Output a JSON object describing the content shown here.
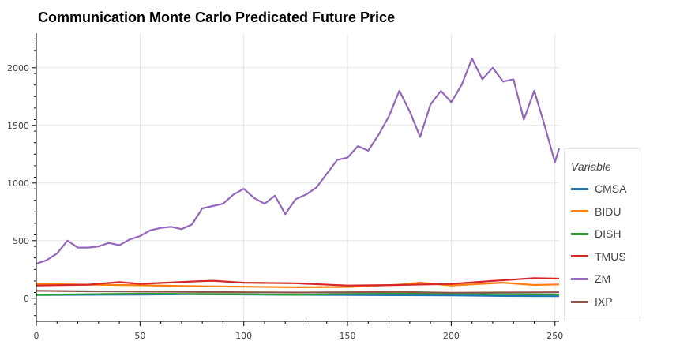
{
  "chart_data": {
    "type": "line",
    "title": "Communication Monte Carlo Predicated Future Price",
    "xlabel": "",
    "ylabel": "",
    "xlim": [
      0,
      252
    ],
    "ylim": [
      -200,
      2300
    ],
    "x_ticks": [
      0,
      50,
      100,
      150,
      200,
      250
    ],
    "y_ticks": [
      0,
      500,
      1000,
      1500,
      2000
    ],
    "grid": true,
    "legend_title": "Variable",
    "legend_position": "right",
    "series": [
      {
        "name": "CMSA",
        "color": "#1f77b4",
        "x": [
          0,
          25,
          50,
          75,
          100,
          125,
          150,
          175,
          200,
          225,
          252
        ],
        "values": [
          28,
          30,
          32,
          35,
          33,
          30,
          28,
          27,
          25,
          20,
          18
        ]
      },
      {
        "name": "BIDU",
        "color": "#ff7f0e",
        "x": [
          0,
          25,
          50,
          75,
          100,
          125,
          150,
          175,
          185,
          200,
          225,
          240,
          252
        ],
        "values": [
          125,
          118,
          112,
          105,
          100,
          95,
          98,
          118,
          135,
          110,
          135,
          115,
          120
        ]
      },
      {
        "name": "DISH",
        "color": "#2ca02c",
        "x": [
          0,
          25,
          50,
          75,
          100,
          125,
          150,
          175,
          200,
          225,
          252
        ],
        "values": [
          30,
          35,
          40,
          38,
          35,
          30,
          38,
          40,
          38,
          35,
          32
        ]
      },
      {
        "name": "TMUS",
        "color": "#d62728",
        "x": [
          0,
          25,
          40,
          50,
          75,
          85,
          100,
          125,
          150,
          175,
          200,
          220,
          240,
          252
        ],
        "values": [
          110,
          118,
          140,
          125,
          145,
          152,
          135,
          130,
          110,
          115,
          125,
          150,
          175,
          170
        ]
      },
      {
        "name": "ZM",
        "color": "#9467bd",
        "x": [
          0,
          5,
          10,
          15,
          20,
          25,
          30,
          35,
          40,
          45,
          50,
          55,
          60,
          65,
          70,
          75,
          80,
          85,
          90,
          95,
          100,
          105,
          110,
          115,
          120,
          125,
          130,
          135,
          140,
          145,
          150,
          155,
          160,
          165,
          170,
          175,
          180,
          185,
          190,
          195,
          200,
          205,
          210,
          215,
          220,
          225,
          230,
          235,
          240,
          245,
          250,
          252
        ],
        "values": [
          300,
          330,
          390,
          500,
          440,
          440,
          450,
          480,
          460,
          510,
          540,
          590,
          610,
          620,
          600,
          640,
          780,
          800,
          820,
          900,
          950,
          870,
          820,
          890,
          730,
          860,
          900,
          960,
          1080,
          1200,
          1220,
          1320,
          1280,
          1420,
          1580,
          1800,
          1620,
          1400,
          1680,
          1800,
          1700,
          1850,
          2080,
          1900,
          2000,
          1880,
          1900,
          1550,
          1800,
          1500,
          1180,
          1300
        ]
      },
      {
        "name": "IXP",
        "color": "#8c564b",
        "x": [
          0,
          25,
          50,
          75,
          100,
          125,
          150,
          175,
          200,
          225,
          252
        ],
        "values": [
          65,
          60,
          58,
          55,
          52,
          50,
          52,
          55,
          48,
          50,
          52
        ]
      }
    ]
  }
}
